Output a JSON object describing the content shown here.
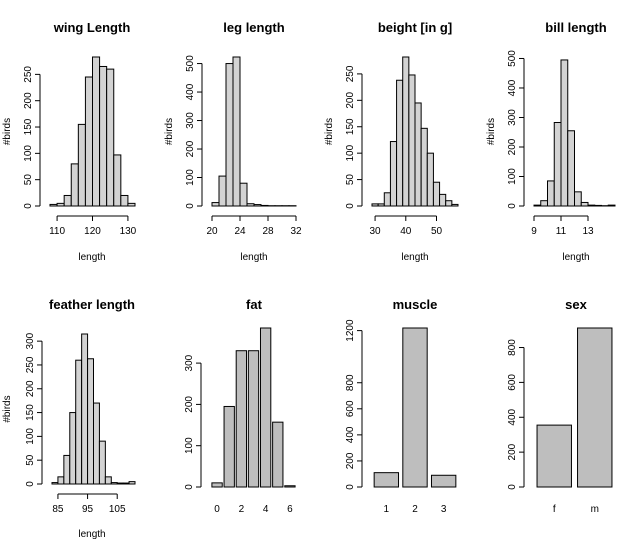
{
  "chart_data": [
    {
      "type": "bar",
      "title": "wing Length",
      "xlabel": "length",
      "ylabel": "#birds",
      "bins": [
        [
          108,
          110
        ],
        [
          110,
          112
        ],
        [
          112,
          114
        ],
        [
          114,
          116
        ],
        [
          116,
          118
        ],
        [
          118,
          120
        ],
        [
          120,
          122
        ],
        [
          122,
          124
        ],
        [
          124,
          126
        ],
        [
          126,
          128
        ],
        [
          128,
          130
        ],
        [
          130,
          132
        ]
      ],
      "values": [
        3,
        5,
        20,
        80,
        155,
        245,
        283,
        265,
        260,
        97,
        20,
        5
      ],
      "xticks": [
        110,
        120,
        130
      ],
      "yticks": [
        0,
        50,
        100,
        150,
        200,
        250
      ],
      "xlim": [
        108,
        132
      ],
      "ylim": [
        0,
        283
      ]
    },
    {
      "type": "bar",
      "title": "leg length",
      "xlabel": "length",
      "ylabel": "#birds",
      "bins": [
        [
          20,
          21
        ],
        [
          21,
          22
        ],
        [
          22,
          23
        ],
        [
          23,
          24
        ],
        [
          24,
          25
        ],
        [
          25,
          26
        ],
        [
          26,
          27
        ],
        [
          27,
          28
        ],
        [
          28,
          29
        ],
        [
          29,
          30
        ],
        [
          30,
          31
        ],
        [
          31,
          32
        ]
      ],
      "values": [
        12,
        105,
        500,
        523,
        80,
        8,
        5,
        2,
        1,
        1,
        1,
        1
      ],
      "xticks": [
        20,
        24,
        28,
        32
      ],
      "xtick_labels": [
        "20",
        "24",
        "28",
        "32"
      ],
      "xtick_show": [
        20,
        24,
        28,
        32
      ],
      "yticks": [
        0,
        100,
        200,
        300,
        400,
        500
      ],
      "xlim": [
        20,
        32
      ],
      "ylim": [
        0,
        523
      ]
    },
    {
      "type": "bar",
      "title": "beight [in g]",
      "xlabel": "length",
      "ylabel": "#birds",
      "bins": [
        [
          29,
          31
        ],
        [
          31,
          33
        ],
        [
          33,
          35
        ],
        [
          35,
          37
        ],
        [
          37,
          39
        ],
        [
          39,
          41
        ],
        [
          41,
          43
        ],
        [
          43,
          45
        ],
        [
          45,
          47
        ],
        [
          47,
          49
        ],
        [
          49,
          51
        ],
        [
          51,
          53
        ],
        [
          53,
          55
        ],
        [
          55,
          57
        ]
      ],
      "values": [
        4,
        4,
        25,
        122,
        238,
        282,
        248,
        195,
        147,
        100,
        45,
        22,
        10,
        3
      ],
      "xticks": [
        30,
        40,
        50
      ],
      "yticks": [
        0,
        50,
        100,
        150,
        200,
        250
      ],
      "xlim": [
        29,
        57
      ],
      "ylim": [
        0,
        282
      ]
    },
    {
      "type": "bar",
      "title": "bill length",
      "xlabel": "length",
      "ylabel": "#birds",
      "bins": [
        [
          9,
          9.5
        ],
        [
          9.5,
          10
        ],
        [
          10,
          10.5
        ],
        [
          10.5,
          11
        ],
        [
          11,
          11.5
        ],
        [
          11.5,
          12
        ],
        [
          12,
          12.5
        ],
        [
          12.5,
          13
        ],
        [
          13,
          13.5
        ],
        [
          13.5,
          14
        ],
        [
          14,
          14.5
        ],
        [
          14.5,
          15
        ]
      ],
      "values": [
        3,
        18,
        85,
        283,
        495,
        255,
        48,
        12,
        3,
        2,
        1,
        3
      ],
      "xticks": [
        9,
        11,
        13
      ],
      "yticks": [
        0,
        100,
        200,
        300,
        400,
        500
      ],
      "xlim": [
        9,
        15
      ],
      "ylim": [
        0,
        505
      ]
    },
    {
      "type": "bar",
      "title": "feather length",
      "xlabel": "length",
      "ylabel": "#birds",
      "bins": [
        [
          83,
          85
        ],
        [
          85,
          87
        ],
        [
          87,
          89
        ],
        [
          89,
          91
        ],
        [
          91,
          93
        ],
        [
          93,
          95
        ],
        [
          95,
          97
        ],
        [
          97,
          99
        ],
        [
          99,
          101
        ],
        [
          101,
          103
        ],
        [
          103,
          105
        ],
        [
          105,
          107
        ],
        [
          107,
          109
        ],
        [
          109,
          111
        ]
      ],
      "values": [
        3,
        15,
        60,
        150,
        260,
        315,
        263,
        170,
        90,
        15,
        3,
        2,
        2,
        5
      ],
      "xticks": [
        85,
        95,
        105
      ],
      "yticks": [
        0,
        50,
        100,
        150,
        200,
        250,
        300
      ],
      "xlim": [
        83,
        111
      ],
      "ylim": [
        0,
        315
      ]
    },
    {
      "type": "bar",
      "title": "fat",
      "xlabel": "",
      "ylabel": "",
      "categories": [
        "0",
        "1",
        "2",
        "3",
        "4",
        "5",
        "6"
      ],
      "values": [
        10,
        195,
        330,
        330,
        385,
        157,
        3
      ],
      "xticks": [
        0,
        2,
        4,
        6
      ],
      "yticks": [
        0,
        100,
        200,
        300
      ],
      "ylim": [
        0,
        385
      ]
    },
    {
      "type": "bar",
      "title": "muscle",
      "xlabel": "",
      "ylabel": "",
      "categories": [
        "1",
        "2",
        "3"
      ],
      "values": [
        110,
        1220,
        90
      ],
      "yticks": [
        0,
        200,
        400,
        600,
        800,
        1200
      ],
      "ylim": [
        0,
        1220
      ]
    },
    {
      "type": "bar",
      "title": "sex",
      "xlabel": "",
      "ylabel": "",
      "categories": [
        "f",
        "m"
      ],
      "values": [
        355,
        912
      ],
      "yticks": [
        0,
        200,
        400,
        600,
        800
      ],
      "ylim": [
        0,
        912
      ]
    }
  ]
}
